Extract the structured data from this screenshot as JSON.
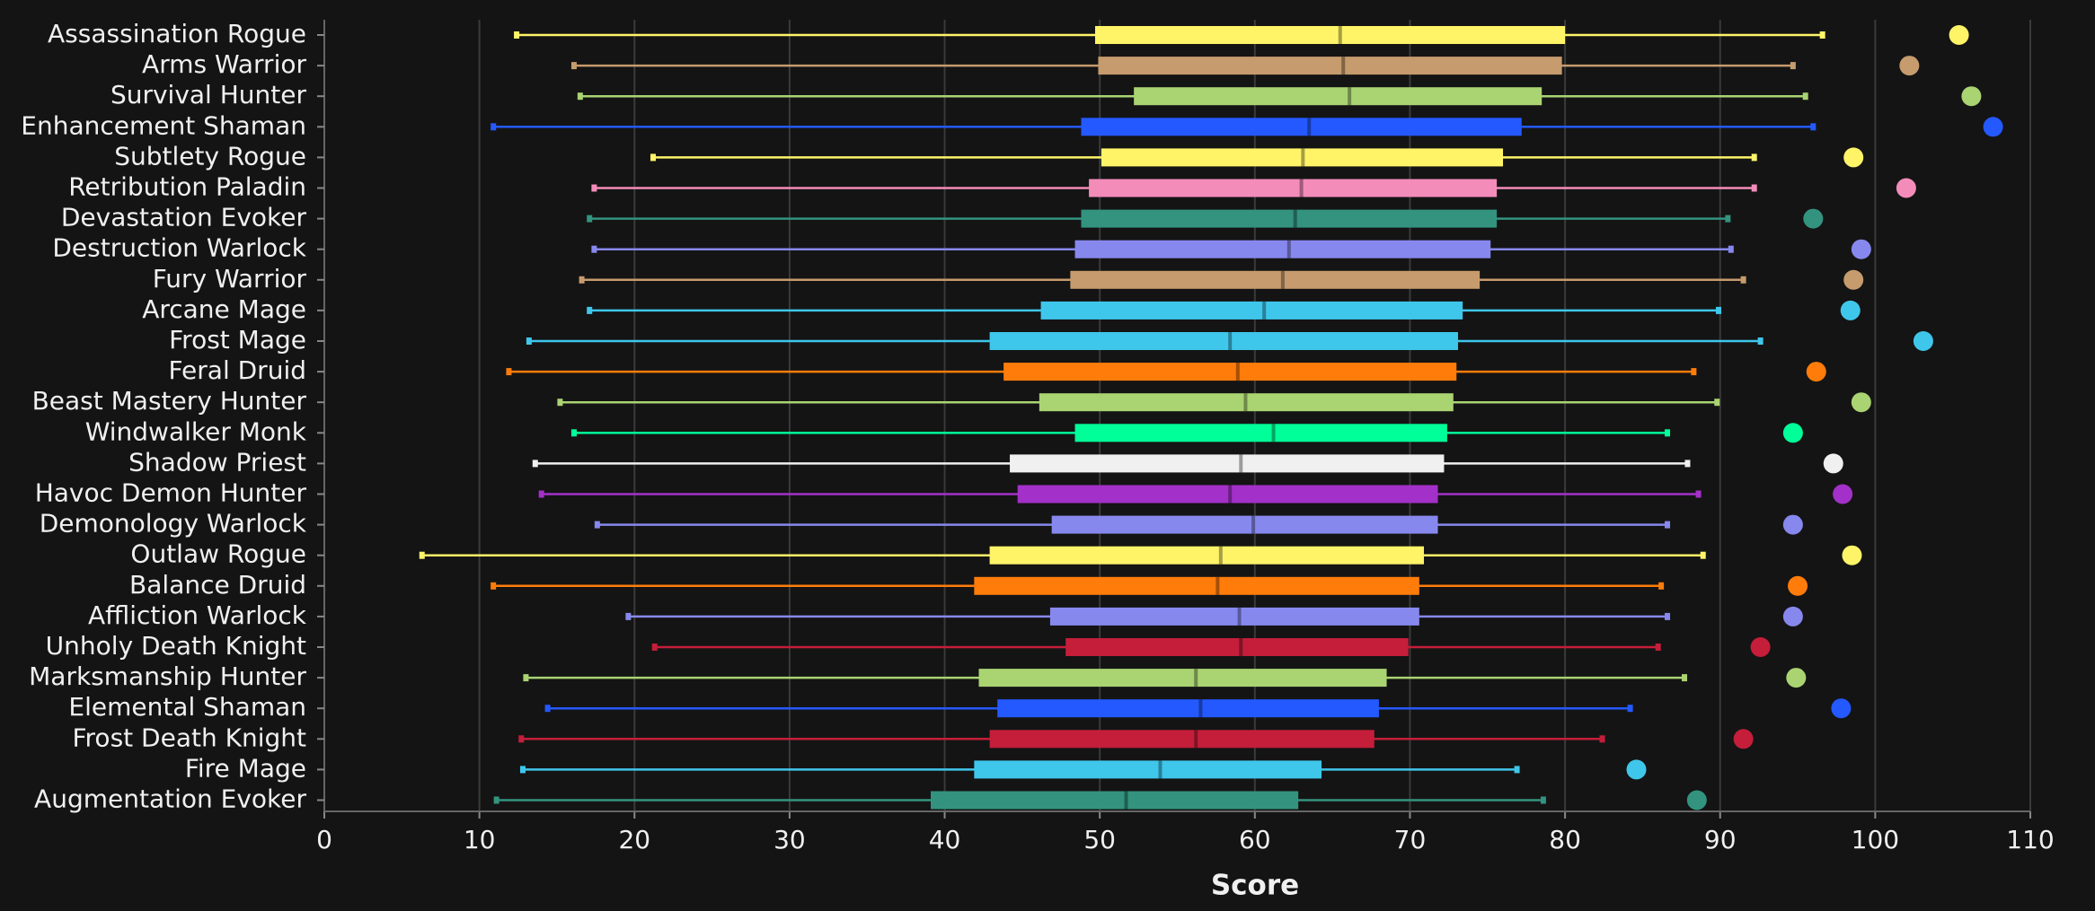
{
  "chart_data": {
    "type": "box",
    "x_label": "Score",
    "xlim": [
      0,
      110
    ],
    "xticks": [
      0,
      10,
      20,
      30,
      40,
      50,
      60,
      70,
      80,
      90,
      100,
      110
    ],
    "grid": true,
    "categories": [
      "Assassination Rogue",
      "Arms Warrior",
      "Survival Hunter",
      "Enhancement Shaman",
      "Subtlety Rogue",
      "Retribution Paladin",
      "Devastation Evoker",
      "Destruction Warlock",
      "Fury Warrior",
      "Arcane Mage",
      "Frost Mage",
      "Feral Druid",
      "Beast Mastery Hunter",
      "Windwalker Monk",
      "Shadow Priest",
      "Havoc Demon Hunter",
      "Demonology Warlock",
      "Outlaw Rogue",
      "Balance Druid",
      "Affliction Warlock",
      "Unholy Death Knight",
      "Marksmanship Hunter",
      "Elemental Shaman",
      "Frost Death Knight",
      "Fire Mage",
      "Augmentation Evoker"
    ],
    "colors": [
      "#fff468",
      "#c69b6d",
      "#aad372",
      "#2459ff",
      "#fff468",
      "#f48cba",
      "#33937f",
      "#8788ee",
      "#c69b6d",
      "#3fc7eb",
      "#3fc7eb",
      "#ff7c0a",
      "#aad372",
      "#00ff98",
      "#f0f0f0",
      "#a330c9",
      "#8788ee",
      "#fff468",
      "#ff7c0a",
      "#8788ee",
      "#c41e3a",
      "#aad372",
      "#2459ff",
      "#c41e3a",
      "#3fc7eb",
      "#33937f"
    ],
    "whisker_low": [
      12.4,
      16.1,
      16.5,
      10.9,
      21.2,
      17.4,
      17.1,
      17.4,
      16.6,
      17.1,
      13.2,
      11.9,
      15.2,
      16.1,
      13.6,
      14.0,
      17.6,
      6.3,
      10.9,
      19.6,
      21.3,
      13.0,
      14.4,
      12.7,
      12.8,
      11.1
    ],
    "q1": [
      49.7,
      49.9,
      52.2,
      48.8,
      50.1,
      49.3,
      48.8,
      48.4,
      48.1,
      46.2,
      42.9,
      43.8,
      46.1,
      48.4,
      44.2,
      44.7,
      46.9,
      42.9,
      41.9,
      46.8,
      47.8,
      42.2,
      43.4,
      42.9,
      41.9,
      39.1
    ],
    "median": [
      65.5,
      65.7,
      66.1,
      63.5,
      63.1,
      63.0,
      62.6,
      62.2,
      61.8,
      60.6,
      58.4,
      58.9,
      59.4,
      61.2,
      59.1,
      58.4,
      59.9,
      57.8,
      57.6,
      59.0,
      59.1,
      56.2,
      56.5,
      56.2,
      53.9,
      51.7
    ],
    "q3": [
      80.0,
      79.8,
      78.5,
      77.2,
      76.0,
      75.6,
      75.6,
      75.2,
      74.5,
      73.4,
      73.1,
      73.0,
      72.8,
      72.4,
      72.2,
      71.8,
      71.8,
      70.9,
      70.6,
      70.6,
      69.9,
      68.5,
      68.0,
      67.7,
      64.3,
      62.8
    ],
    "whisker_high": [
      96.6,
      94.7,
      95.5,
      96.0,
      92.2,
      92.2,
      90.5,
      90.7,
      91.5,
      89.9,
      92.6,
      88.3,
      89.8,
      86.6,
      87.9,
      88.6,
      86.6,
      88.9,
      86.2,
      86.6,
      86.0,
      87.7,
      84.2,
      82.4,
      76.9,
      78.6
    ],
    "points": [
      105.4,
      102.2,
      106.2,
      107.6,
      98.6,
      102.0,
      96.0,
      99.1,
      98.6,
      98.4,
      103.1,
      96.2,
      99.1,
      94.7,
      97.3,
      97.9,
      94.7,
      98.5,
      95.0,
      94.7,
      92.6,
      94.9,
      97.8,
      91.5,
      84.6,
      88.5
    ]
  }
}
